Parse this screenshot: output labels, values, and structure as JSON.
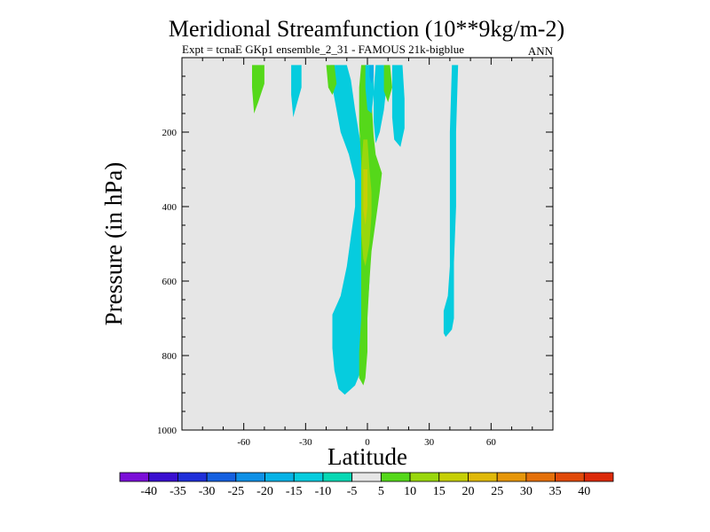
{
  "chart_data": {
    "type": "contour",
    "title": "Meridional Streamfunction (10**9kg/m-2)",
    "subtitle_left": "Expt = tcnaE GKp1 ensemble_2_31 - FAMOUS 21k-bigblue",
    "subtitle_right": "ANN",
    "xlabel": "Latitude",
    "ylabel": "Pressure (in hPa)",
    "xlim": [
      -90,
      90
    ],
    "ylim": [
      1000,
      0
    ],
    "x_ticks": [
      -60,
      -30,
      0,
      30,
      60
    ],
    "x_tick_labels": [
      "-60",
      "-30",
      "0",
      "30",
      "60"
    ],
    "y_ticks": [
      200,
      400,
      600,
      800,
      1000
    ],
    "y_tick_labels": [
      "200",
      "400",
      "600",
      "800",
      "1000"
    ],
    "background_color": "#e6e6e6",
    "colorbar": {
      "labels": [
        "-40",
        "-35",
        "-30",
        "-25",
        "-20",
        "-15",
        "-10",
        "-5",
        "5",
        "10",
        "15",
        "20",
        "25",
        "30",
        "35",
        "40"
      ],
      "colors": [
        "#7b0fd8",
        "#3a0fd0",
        "#1f2fd9",
        "#1560e0",
        "#0f90e6",
        "#06b2e6",
        "#06ccde",
        "#06d8b4",
        "#e6e6e6",
        "#55d81a",
        "#99d70d",
        "#c6cf05",
        "#e0b90a",
        "#e6960a",
        "#e4700a",
        "#e14a0a",
        "#dc2a0a"
      ]
    },
    "regions": [
      {
        "name": "nh-cell-cyan",
        "level": "-10",
        "polygon": [
          [
            -17,
            690
          ],
          [
            -13,
            640
          ],
          [
            -10,
            560
          ],
          [
            -8,
            480
          ],
          [
            -6,
            400
          ],
          [
            -6,
            330
          ],
          [
            -9,
            260
          ],
          [
            -13,
            200
          ],
          [
            -15,
            140
          ],
          [
            -17,
            80
          ],
          [
            -18,
            20
          ],
          [
            -10,
            20
          ],
          [
            -8,
            60
          ],
          [
            -6,
            140
          ],
          [
            -3,
            240
          ],
          [
            -1,
            340
          ],
          [
            0,
            420
          ],
          [
            1,
            520
          ],
          [
            1,
            600
          ],
          [
            0,
            680
          ],
          [
            -1,
            770
          ],
          [
            -3,
            840
          ],
          [
            -6,
            880
          ],
          [
            -11,
            905
          ],
          [
            -14,
            890
          ],
          [
            -16,
            840
          ],
          [
            -17,
            780
          ]
        ]
      },
      {
        "name": "equator-green",
        "level": "5",
        "polygon": [
          [
            -3,
            20
          ],
          [
            1,
            20
          ],
          [
            2,
            110
          ],
          [
            3,
            210
          ],
          [
            4,
            260
          ],
          [
            7,
            310
          ],
          [
            6,
            360
          ],
          [
            4,
            440
          ],
          [
            2,
            520
          ],
          [
            1,
            600
          ],
          [
            0,
            700
          ],
          [
            0,
            790
          ],
          [
            -1,
            860
          ],
          [
            -2,
            880
          ],
          [
            -4,
            860
          ],
          [
            -4,
            790
          ],
          [
            -3,
            700
          ],
          [
            -3,
            600
          ],
          [
            -3,
            480
          ],
          [
            -3,
            380
          ],
          [
            -3,
            280
          ],
          [
            -4,
            180
          ],
          [
            -4,
            80
          ]
        ]
      },
      {
        "name": "equator-yellow",
        "level": "10",
        "polygon": [
          [
            -2,
            220
          ],
          [
            0,
            220
          ],
          [
            1,
            300
          ],
          [
            2,
            360
          ],
          [
            2,
            420
          ],
          [
            1,
            500
          ],
          [
            -1,
            560
          ],
          [
            -2,
            540
          ],
          [
            -3,
            470
          ],
          [
            -3,
            400
          ],
          [
            -3,
            300
          ]
        ]
      },
      {
        "name": "equator-orange",
        "level": "15",
        "polygon": [
          [
            -2,
            300
          ],
          [
            0,
            300
          ],
          [
            0,
            400
          ],
          [
            -1,
            450
          ],
          [
            -2,
            410
          ],
          [
            -2,
            350
          ]
        ]
      },
      {
        "name": "inner-cyan",
        "level": "-10",
        "polygon": [
          [
            -1,
            20
          ],
          [
            3,
            20
          ],
          [
            3,
            100
          ],
          [
            2,
            150
          ],
          [
            0,
            140
          ],
          [
            -1,
            80
          ]
        ]
      },
      {
        "name": "inner-blue",
        "level": "-15",
        "polygon": [
          [
            1,
            20
          ],
          [
            3,
            20
          ],
          [
            3,
            50
          ],
          [
            2,
            70
          ],
          [
            1,
            50
          ]
        ]
      },
      {
        "name": "plume-cyan-5",
        "level": "-10",
        "polygon": [
          [
            4,
            20
          ],
          [
            8,
            20
          ],
          [
            9,
            90
          ],
          [
            8,
            140
          ],
          [
            6,
            200
          ],
          [
            4,
            230
          ],
          [
            3,
            170
          ],
          [
            3,
            90
          ]
        ]
      },
      {
        "name": "plume-green-8",
        "level": "5",
        "polygon": [
          [
            8,
            20
          ],
          [
            11,
            20
          ],
          [
            12,
            80
          ],
          [
            10,
            120
          ],
          [
            8,
            90
          ]
        ]
      },
      {
        "name": "plume-cyan-15",
        "level": "-10",
        "polygon": [
          [
            12,
            20
          ],
          [
            17,
            20
          ],
          [
            18,
            110
          ],
          [
            18,
            190
          ],
          [
            16,
            240
          ],
          [
            13,
            220
          ],
          [
            12,
            160
          ],
          [
            12,
            80
          ]
        ]
      },
      {
        "name": "plume-green-neg20",
        "level": "5",
        "polygon": [
          [
            -20,
            20
          ],
          [
            -16,
            20
          ],
          [
            -15,
            70
          ],
          [
            -17,
            100
          ],
          [
            -19,
            80
          ]
        ]
      },
      {
        "name": "plume-cyan-neg35",
        "level": "-10",
        "polygon": [
          [
            -37,
            20
          ],
          [
            -32,
            20
          ],
          [
            -32,
            80
          ],
          [
            -34,
            120
          ],
          [
            -36,
            160
          ],
          [
            -37,
            100
          ]
        ]
      },
      {
        "name": "plume-green-neg55",
        "level": "5",
        "polygon": [
          [
            -56,
            20
          ],
          [
            -50,
            20
          ],
          [
            -50,
            70
          ],
          [
            -53,
            120
          ],
          [
            -55,
            150
          ],
          [
            -56,
            80
          ]
        ]
      },
      {
        "name": "sh-cyan-43",
        "level": "-10",
        "polygon": [
          [
            41,
            20
          ],
          [
            44,
            20
          ],
          [
            43,
            200
          ],
          [
            43,
            400
          ],
          [
            42,
            550
          ],
          [
            42,
            700
          ],
          [
            41,
            730
          ],
          [
            38,
            750
          ],
          [
            37,
            740
          ],
          [
            37,
            680
          ],
          [
            39,
            640
          ],
          [
            40,
            560
          ],
          [
            40,
            400
          ],
          [
            40,
            200
          ]
        ]
      }
    ]
  }
}
